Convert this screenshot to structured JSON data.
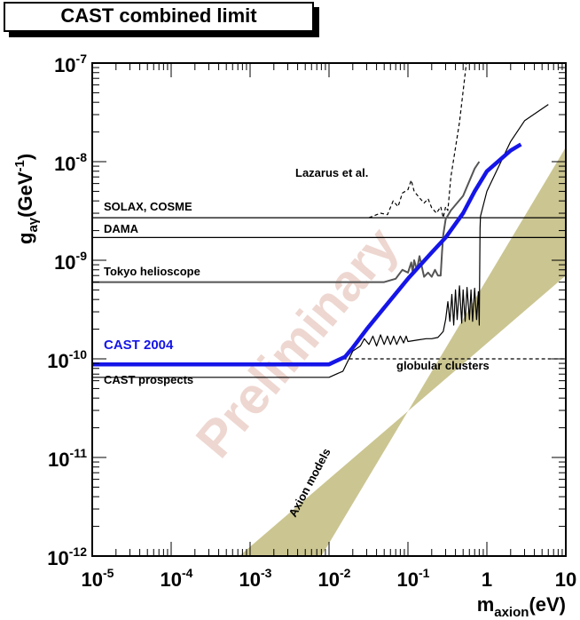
{
  "title": "CAST combined limit",
  "chart_data": {
    "type": "line",
    "log_x": true,
    "log_y": true,
    "xlim": [
      1e-05,
      10
    ],
    "ylim": [
      1e-12,
      1e-07
    ],
    "x_label": {
      "main": "m",
      "sub": "axion",
      "suffix": "(eV)"
    },
    "y_label": {
      "main": "g",
      "sub": "aγ",
      "mid": "(GeV",
      "sup": "-1",
      "suffix": ")"
    },
    "x_ticks": [
      {
        "value": 1e-05,
        "base": "10",
        "exp": "-5"
      },
      {
        "value": 0.0001,
        "base": "10",
        "exp": "-4"
      },
      {
        "value": 0.001,
        "base": "10",
        "exp": "-3"
      },
      {
        "value": 0.01,
        "base": "10",
        "exp": "-2"
      },
      {
        "value": 0.1,
        "base": "10",
        "exp": "-1"
      },
      {
        "value": 1,
        "text": "1"
      },
      {
        "value": 10,
        "text": "10"
      }
    ],
    "y_ticks": [
      {
        "value": 1e-12,
        "base": "10",
        "exp": "-12"
      },
      {
        "value": 1e-11,
        "base": "10",
        "exp": "-11"
      },
      {
        "value": 1e-10,
        "base": "10",
        "exp": "-10"
      },
      {
        "value": 1e-09,
        "base": "10",
        "exp": "-9"
      },
      {
        "value": 1e-08,
        "base": "10",
        "exp": "-8"
      },
      {
        "value": 1e-07,
        "base": "10",
        "exp": "-7"
      }
    ],
    "band": {
      "name": "Axion models",
      "color": "#cbc591",
      "points": [
        [
          0.00073,
          1e-12
        ],
        [
          0.008,
          1e-12
        ],
        [
          10,
          1.4e-08
        ],
        [
          10,
          7e-10
        ]
      ]
    },
    "series": [
      {
        "name": "CAST 2004",
        "color": "#1515e8",
        "style": "thick",
        "points": [
          [
            1e-05,
            8.8e-11
          ],
          [
            0.001,
            8.8e-11
          ],
          [
            0.01,
            8.8e-11
          ],
          [
            0.016,
            1.05e-10
          ],
          [
            0.02,
            1.3e-10
          ],
          [
            0.03,
            2e-10
          ],
          [
            0.05,
            3.3e-10
          ],
          [
            0.1,
            6.5e-10
          ],
          [
            0.2,
            1.2e-09
          ],
          [
            0.3,
            1.7e-09
          ],
          [
            0.5,
            3e-09
          ],
          [
            0.7,
            5e-09
          ],
          [
            1,
            8e-09
          ],
          [
            2,
            1.3e-08
          ],
          [
            2.7,
            1.5e-08
          ]
        ]
      },
      {
        "name": "CAST prospects",
        "color": "#000000",
        "style": "thin",
        "points": [
          [
            1e-05,
            6.5e-11
          ],
          [
            0.001,
            6.5e-11
          ],
          [
            0.01,
            6.5e-11
          ],
          [
            0.015,
            7.5e-11
          ],
          [
            0.02,
            1.2e-10
          ],
          [
            0.025,
            1.35e-10
          ],
          [
            0.028,
            1.6e-10
          ],
          [
            0.032,
            1.4e-10
          ],
          [
            0.036,
            1.7e-10
          ],
          [
            0.04,
            1.35e-10
          ],
          [
            0.045,
            1.75e-10
          ],
          [
            0.05,
            1.4e-10
          ],
          [
            0.055,
            1.7e-10
          ],
          [
            0.06,
            1.4e-10
          ],
          [
            0.066,
            1.7e-10
          ],
          [
            0.072,
            1.4e-10
          ],
          [
            0.08,
            1.7e-10
          ],
          [
            0.088,
            1.45e-10
          ],
          [
            0.095,
            1.7e-10
          ],
          [
            0.1,
            1.5e-10
          ],
          [
            0.13,
            1.55e-10
          ],
          [
            0.17,
            1.6e-10
          ],
          [
            0.2,
            1.6e-10
          ],
          [
            0.24,
            1.65e-10
          ],
          [
            0.28,
            1.9e-10
          ],
          [
            0.3,
            2.5e-10
          ],
          [
            0.32,
            3.8e-10
          ],
          [
            0.34,
            2.4e-10
          ],
          [
            0.36,
            4.5e-10
          ],
          [
            0.38,
            2.2e-10
          ],
          [
            0.4,
            5e-10
          ],
          [
            0.42,
            2.5e-10
          ],
          [
            0.45,
            5.5e-10
          ],
          [
            0.48,
            2.3e-10
          ],
          [
            0.5,
            5e-10
          ],
          [
            0.53,
            2.4e-10
          ],
          [
            0.56,
            5.3e-10
          ],
          [
            0.6,
            2.5e-10
          ],
          [
            0.63,
            5e-10
          ],
          [
            0.66,
            2.4e-10
          ],
          [
            0.7,
            5.2e-10
          ],
          [
            0.74,
            2.5e-10
          ],
          [
            0.78,
            4.8e-10
          ],
          [
            0.8,
            2.2e-10
          ],
          [
            0.82,
            2.1e-09
          ],
          [
            0.83,
            2.8e-09
          ],
          [
            1,
            5e-09
          ],
          [
            2,
            1.6e-08
          ],
          [
            3,
            2.6e-08
          ],
          [
            6,
            3.8e-08
          ]
        ]
      },
      {
        "name": "Tokyo helioscope",
        "color": "#555555",
        "style": "medium",
        "points": [
          [
            1e-05,
            6e-10
          ],
          [
            0.01,
            6e-10
          ],
          [
            0.05,
            6e-10
          ],
          [
            0.07,
            6.5e-10
          ],
          [
            0.085,
            8e-10
          ],
          [
            0.1,
            7.5e-10
          ],
          [
            0.11,
            9.5e-10
          ],
          [
            0.115,
            7.5e-10
          ],
          [
            0.12,
            1e-09
          ],
          [
            0.13,
            8e-10
          ],
          [
            0.14,
            1.1e-09
          ],
          [
            0.16,
            6.8e-10
          ],
          [
            0.18,
            7.5e-10
          ],
          [
            0.2,
            6.8e-10
          ],
          [
            0.22,
            8e-10
          ],
          [
            0.24,
            7e-10
          ],
          [
            0.26,
            7e-10
          ],
          [
            0.27,
            1.2e-09
          ],
          [
            0.28,
            1.8e-09
          ],
          [
            0.3,
            2.6e-09
          ],
          [
            0.35,
            3.2e-09
          ],
          [
            0.5,
            4.5e-09
          ],
          [
            0.7,
            8.5e-09
          ],
          [
            0.8,
            1e-08
          ]
        ]
      },
      {
        "name": "SOLAX, COSME",
        "color": "#000000",
        "style": "thin",
        "points": [
          [
            1e-05,
            2.7e-09
          ],
          [
            10,
            2.7e-09
          ]
        ]
      },
      {
        "name": "DAMA",
        "color": "#000000",
        "style": "thin",
        "points": [
          [
            1e-05,
            1.7e-09
          ],
          [
            10,
            1.7e-09
          ]
        ]
      },
      {
        "name": "Lazarus et al.",
        "color": "#000000",
        "style": "dashed",
        "points": [
          [
            0.032,
            2.7e-09
          ],
          [
            0.045,
            3e-09
          ],
          [
            0.055,
            2.9e-09
          ],
          [
            0.065,
            4e-09
          ],
          [
            0.075,
            3.5e-09
          ],
          [
            0.085,
            4.8e-09
          ],
          [
            0.1,
            5.2e-09
          ],
          [
            0.11,
            6.5e-09
          ],
          [
            0.12,
            5e-09
          ],
          [
            0.14,
            4.3e-09
          ],
          [
            0.16,
            3.8e-09
          ],
          [
            0.18,
            4.2e-09
          ],
          [
            0.2,
            3.4e-09
          ],
          [
            0.23,
            3e-09
          ],
          [
            0.26,
            3.5e-09
          ],
          [
            0.28,
            2.7e-09
          ],
          [
            0.3,
            3.5e-09
          ],
          [
            0.32,
            3.2e-09
          ],
          [
            0.35,
            7e-09
          ],
          [
            0.45,
            2.5e-08
          ],
          [
            0.55,
            1e-07
          ]
        ]
      },
      {
        "name": "globular clusters",
        "color": "#000000",
        "style": "dashed",
        "points": [
          [
            0.015,
            1e-10
          ],
          [
            10,
            1e-10
          ]
        ]
      }
    ],
    "labels": {
      "cast_2004": "CAST 2004",
      "cast_prospects": "CAST prospects",
      "tokyo": "Tokyo helioscope",
      "solax": "SOLAX, COSME",
      "dama": "DAMA",
      "lazarus": "Lazarus et al.",
      "globular": "globular clusters",
      "axion_models": "Axion models"
    },
    "watermark": "Preliminary"
  }
}
